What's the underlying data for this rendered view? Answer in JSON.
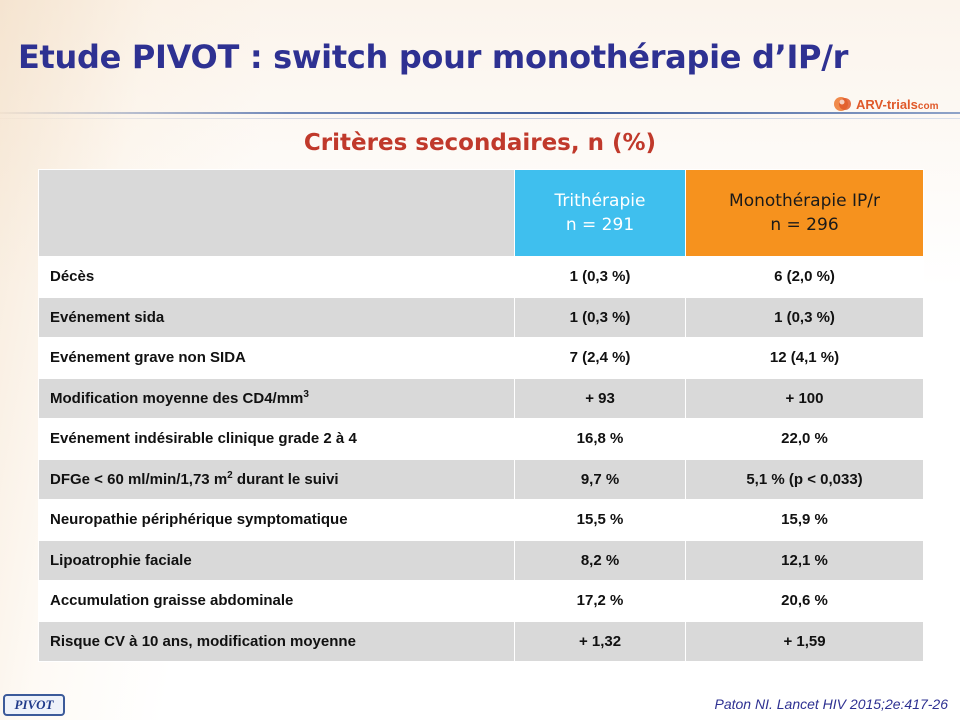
{
  "title": "Etude PIVOT : switch pour monothérapie d’IP/r",
  "logo": {
    "main": "ARV-trials",
    "domain": "com",
    "icon": "arv-trials-logo-icon"
  },
  "subtitle": "Critères secondaires, n (%)",
  "table": {
    "columns": [
      {
        "line1": "Trithérapie",
        "line2": "n = 291",
        "color": "#3fbfee"
      },
      {
        "line1": "Monothérapie IP/r",
        "line2": "n = 296",
        "color": "#f6921e"
      }
    ],
    "rows": [
      {
        "label": "Décès",
        "sup": "",
        "label_after": "",
        "tri": "1 (0,3 %)",
        "mono": "6 (2,0 %)"
      },
      {
        "label": "Evénement sida",
        "sup": "",
        "label_after": "",
        "tri": "1 (0,3 %)",
        "mono": "1 (0,3 %)"
      },
      {
        "label": "Evénement grave non SIDA",
        "sup": "",
        "label_after": "",
        "tri": "7 (2,4 %)",
        "mono": "12 (4,1 %)"
      },
      {
        "label": "Modification moyenne des CD4/mm",
        "sup": "3",
        "label_after": "",
        "tri": "+ 93",
        "mono": "+ 100"
      },
      {
        "label": "Evénement indésirable clinique grade 2 à 4",
        "sup": "",
        "label_after": "",
        "tri": "16,8 %",
        "mono": "22,0 %"
      },
      {
        "label": "DFGe < 60 ml/min/1,73 m",
        "sup": "2",
        "label_after": " durant le suivi",
        "tri": "9,7 %",
        "mono": "5,1 % (p < 0,033)"
      },
      {
        "label": "Neuropathie périphérique symptomatique",
        "sup": "",
        "label_after": "",
        "tri": "15,5 %",
        "mono": "15,9 %"
      },
      {
        "label": "Lipoatrophie faciale",
        "sup": "",
        "label_after": "",
        "tri": "8,2 %",
        "mono": "12,1 %"
      },
      {
        "label": "Accumulation graisse abdominale",
        "sup": "",
        "label_after": "",
        "tri": "17,2 %",
        "mono": "20,6 %"
      },
      {
        "label": "Risque CV à 10 ans, modification moyenne",
        "sup": "",
        "label_after": "",
        "tri": "+ 1,32",
        "mono": "+ 1,59"
      }
    ]
  },
  "badge": "PIVOT",
  "citation": "Paton NI. Lancet HIV 2015;2e:417-26"
}
